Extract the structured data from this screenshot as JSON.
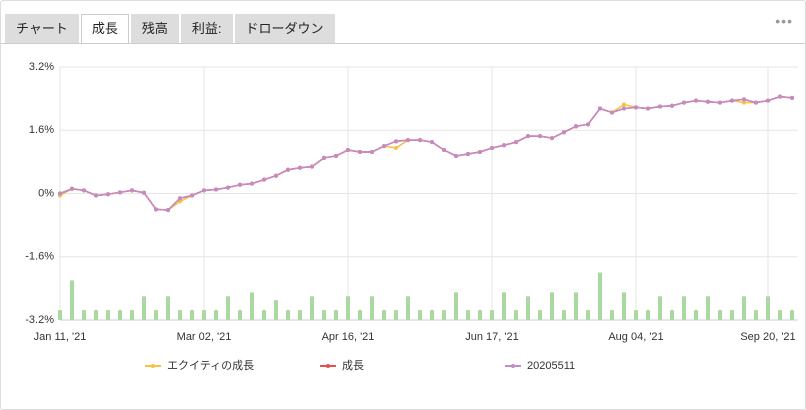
{
  "tabs": [
    "チャート",
    "成長",
    "残高",
    "利益:",
    "ドローダウン"
  ],
  "chart_data": {
    "type": "line",
    "categories": [
      "Jan 11, '21",
      null,
      null,
      null,
      null,
      null,
      null,
      null,
      null,
      null,
      null,
      null,
      "Mar 02, '21",
      null,
      null,
      null,
      null,
      null,
      null,
      null,
      null,
      null,
      null,
      null,
      "Apr 16, '21",
      null,
      null,
      null,
      null,
      null,
      null,
      null,
      null,
      null,
      null,
      null,
      "Jun 17, '21",
      null,
      null,
      null,
      null,
      null,
      null,
      null,
      null,
      null,
      null,
      null,
      "Aug 04, '21",
      null,
      null,
      null,
      null,
      null,
      null,
      null,
      null,
      null,
      null,
      "Sep 20, '21",
      null,
      null
    ],
    "ylim": [
      -3.2,
      3.2
    ],
    "yticks": [
      {
        "value": -3.2,
        "label": "-3.2%"
      },
      {
        "value": -1.6,
        "label": "-1.6%"
      },
      {
        "value": 0,
        "label": "0%"
      },
      {
        "value": 1.6,
        "label": "1.6%"
      },
      {
        "value": 3.2,
        "label": "3.2%"
      }
    ],
    "grid": true,
    "series": [
      {
        "name": "エクイティの成長",
        "color": "#f5c242",
        "values": [
          -0.05,
          0.12,
          0.08,
          -0.05,
          -0.02,
          0.03,
          0.08,
          0.02,
          -0.4,
          -0.42,
          -0.2,
          -0.05,
          0.08,
          0.1,
          0.15,
          0.22,
          0.25,
          0.35,
          0.45,
          0.6,
          0.65,
          0.68,
          0.9,
          0.95,
          1.1,
          1.05,
          1.05,
          1.2,
          1.15,
          1.35,
          1.35,
          1.3,
          1.1,
          0.95,
          1.0,
          1.05,
          1.15,
          1.22,
          1.3,
          1.45,
          1.45,
          1.4,
          1.55,
          1.7,
          1.75,
          2.15,
          2.05,
          2.25,
          2.18,
          2.15,
          2.2,
          2.22,
          2.3,
          2.35,
          2.32,
          2.3,
          2.35,
          2.3,
          2.3,
          2.35,
          2.45,
          2.42
        ]
      },
      {
        "name": "成長",
        "color": "#e05050",
        "values": [
          0,
          0.12,
          0.08,
          -0.05,
          -0.02,
          0.03,
          0.08,
          0.02,
          -0.4,
          -0.42,
          -0.12,
          -0.05,
          0.08,
          0.1,
          0.15,
          0.22,
          0.25,
          0.35,
          0.45,
          0.6,
          0.65,
          0.68,
          0.9,
          0.95,
          1.1,
          1.05,
          1.05,
          1.2,
          1.32,
          1.35,
          1.35,
          1.3,
          1.1,
          0.95,
          1.0,
          1.05,
          1.15,
          1.22,
          1.3,
          1.45,
          1.45,
          1.4,
          1.55,
          1.7,
          1.75,
          2.15,
          2.05,
          2.15,
          2.18,
          2.15,
          2.2,
          2.22,
          2.3,
          2.35,
          2.32,
          2.3,
          2.35,
          2.38,
          2.3,
          2.35,
          2.45,
          2.42
        ]
      },
      {
        "name": "20205511",
        "color": "#c48bc4",
        "values": [
          0,
          0.12,
          0.08,
          -0.05,
          -0.02,
          0.03,
          0.08,
          0.02,
          -0.4,
          -0.42,
          -0.12,
          -0.05,
          0.08,
          0.1,
          0.15,
          0.22,
          0.25,
          0.35,
          0.45,
          0.6,
          0.65,
          0.68,
          0.9,
          0.95,
          1.1,
          1.05,
          1.05,
          1.2,
          1.32,
          1.35,
          1.35,
          1.3,
          1.1,
          0.95,
          1.0,
          1.05,
          1.15,
          1.22,
          1.3,
          1.45,
          1.45,
          1.4,
          1.55,
          1.7,
          1.75,
          2.15,
          2.05,
          2.15,
          2.18,
          2.15,
          2.2,
          2.22,
          2.3,
          2.35,
          2.32,
          2.3,
          2.35,
          2.38,
          2.3,
          2.35,
          2.45,
          2.42
        ]
      },
      {
        "type": "bar",
        "color": "#a9d9a1",
        "values": [
          -2.95,
          -2.2,
          -2.95,
          -2.95,
          -2.95,
          -2.95,
          -2.95,
          -2.6,
          -2.95,
          -2.6,
          -2.95,
          -2.95,
          -2.95,
          -2.95,
          -2.6,
          -2.95,
          -2.5,
          -2.95,
          -2.7,
          -2.95,
          -2.95,
          -2.6,
          -2.95,
          -2.95,
          -2.6,
          -2.95,
          -2.6,
          -2.95,
          -2.95,
          -2.6,
          -2.95,
          -2.95,
          -2.95,
          -2.5,
          -2.95,
          -2.95,
          -2.95,
          -2.5,
          -2.95,
          -2.6,
          -2.95,
          -2.5,
          -2.95,
          -2.5,
          -2.95,
          -2.0,
          -2.95,
          -2.5,
          -2.95,
          -2.95,
          -2.6,
          -2.95,
          -2.6,
          -2.95,
          -2.6,
          -2.95,
          -2.95,
          -2.6,
          -2.95,
          -2.6,
          -2.95,
          -2.95
        ]
      }
    ]
  }
}
